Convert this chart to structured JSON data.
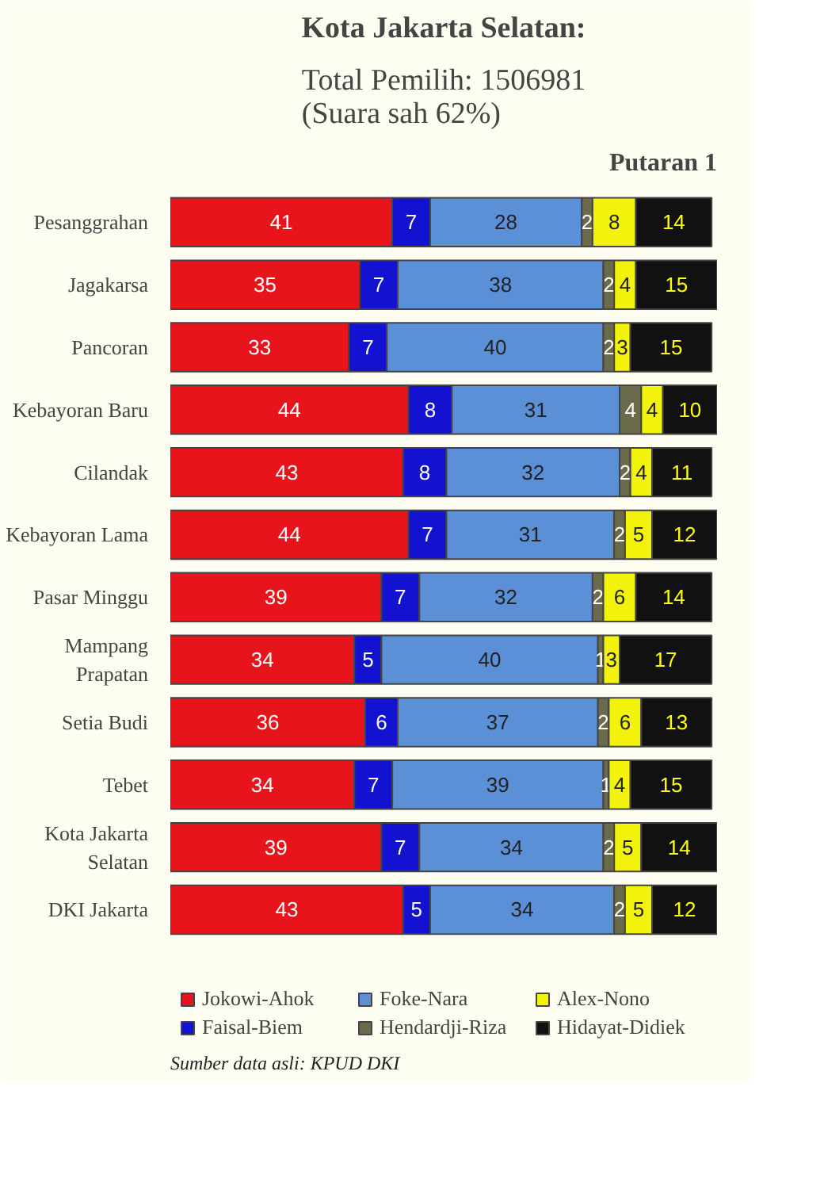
{
  "chart_data": {
    "type": "bar",
    "orientation": "horizontal",
    "stacked": true,
    "data_labels": true,
    "legend": "bottom",
    "grid": false,
    "title": "Kota Jakarta Selatan:",
    "subtitle": "Total Pemilih: 1506981\n(Suara sah 62%)",
    "annotations": [
      "Putaran 1",
      "Sumber data asli: KPUD DKI"
    ],
    "categories": [
      "Pesanggrahan",
      "Jagakarsa",
      "Pancoran",
      "Kebayoran Baru",
      "Cilandak",
      "Kebayoran Lama",
      "Pasar Minggu",
      "Mampang\nPrapatan",
      "Setia Budi",
      "Tebet",
      "Kota Jakarta\nSelatan",
      "DKI Jakarta"
    ],
    "series": [
      {
        "name": "Jokowi-Ahok",
        "color": "#e8141b",
        "values": [
          41,
          35,
          33,
          44,
          43,
          44,
          39,
          34,
          36,
          34,
          39,
          43
        ]
      },
      {
        "name": "Faisal-Biem",
        "color": "#1212d0",
        "values": [
          7,
          7,
          7,
          8,
          8,
          7,
          7,
          5,
          6,
          7,
          7,
          5
        ]
      },
      {
        "name": "Foke-Nara",
        "color": "#5b8fd6",
        "values": [
          28,
          38,
          40,
          31,
          32,
          31,
          32,
          40,
          37,
          39,
          34,
          34
        ]
      },
      {
        "name": "Hendardji-Riza",
        "color": "#6b6b4b",
        "values": [
          2,
          2,
          2,
          4,
          2,
          2,
          2,
          1,
          2,
          1,
          2,
          2
        ]
      },
      {
        "name": "Alex-Nono",
        "color": "#f2f20a",
        "values": [
          8,
          4,
          3,
          4,
          4,
          5,
          6,
          3,
          6,
          4,
          5,
          5
        ]
      },
      {
        "name": "Hidayat-Didiek",
        "color": "#111111",
        "values": [
          14,
          15,
          15,
          10,
          11,
          12,
          14,
          17,
          13,
          15,
          14,
          12
        ]
      }
    ]
  }
}
